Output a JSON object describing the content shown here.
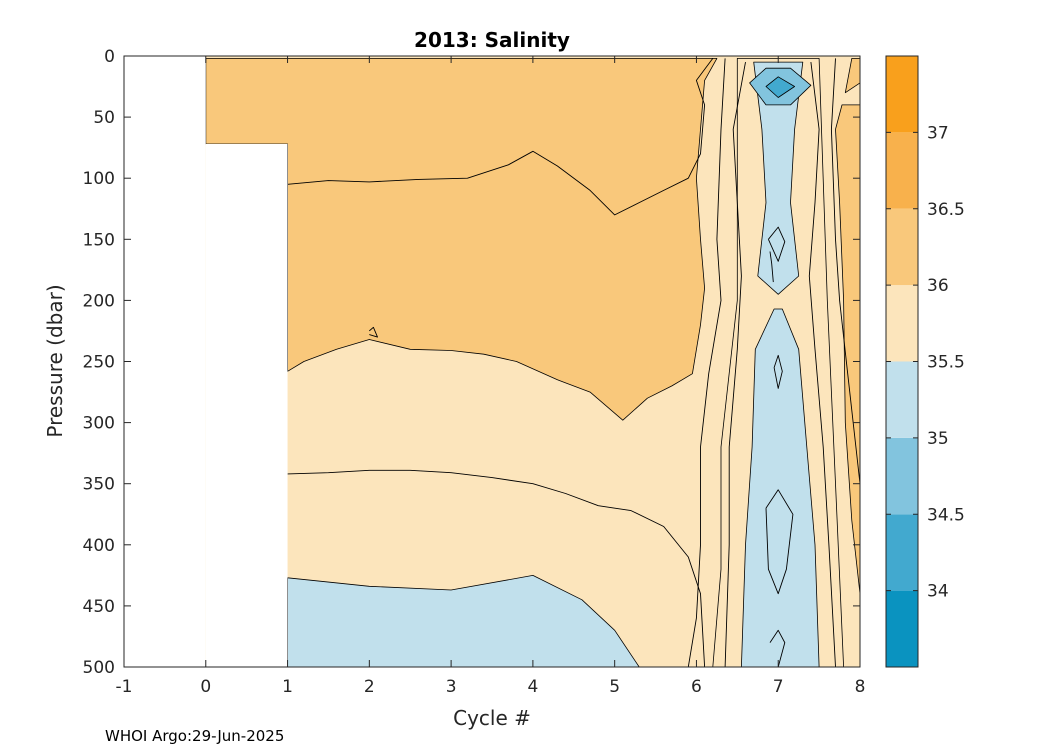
{
  "chart_data": {
    "type": "contour",
    "title": "2013:  Salinity",
    "xlabel": "Cycle #",
    "ylabel": "Pressure (dbar)",
    "xlim": [
      -1,
      8
    ],
    "ylim": [
      0,
      500
    ],
    "y_reversed": true,
    "x_ticks": [
      -1,
      0,
      1,
      2,
      3,
      4,
      5,
      6,
      7,
      8
    ],
    "y_ticks": [
      0,
      50,
      100,
      150,
      200,
      250,
      300,
      350,
      400,
      450,
      500
    ],
    "colorbar": {
      "range": [
        33.5,
        37.5
      ],
      "ticks": [
        34,
        34.5,
        35,
        35.5,
        36,
        36.5,
        37
      ],
      "bands": [
        {
          "from": 33.5,
          "to": 34.0,
          "color": "#0a93c0"
        },
        {
          "from": 34.0,
          "to": 34.5,
          "color": "#42a9cf"
        },
        {
          "from": 34.5,
          "to": 35.0,
          "color": "#82c4de"
        },
        {
          "from": 35.0,
          "to": 35.5,
          "color": "#c1e0ec"
        },
        {
          "from": 35.5,
          "to": 36.0,
          "color": "#fce5bc"
        },
        {
          "from": 36.0,
          "to": 36.5,
          "color": "#f9c87b"
        },
        {
          "from": 36.5,
          "to": 37.0,
          "color": "#f8b14c"
        },
        {
          "from": 37.0,
          "to": 37.5,
          "color": "#f9a01c"
        }
      ]
    },
    "no_data_regions": [
      {
        "x": [
          -1,
          0
        ],
        "y": [
          0,
          500
        ]
      },
      {
        "x": [
          0,
          1
        ],
        "y": [
          72,
          500
        ]
      }
    ],
    "regions": [
      {
        "level": 36.0,
        "color": "#f9c87b",
        "points": [
          [
            0,
            2
          ],
          [
            6.25,
            2
          ],
          [
            6.1,
            20
          ],
          [
            6.05,
            60
          ],
          [
            6.0,
            100
          ],
          [
            6.05,
            150
          ],
          [
            6.1,
            190
          ],
          [
            6.05,
            220
          ],
          [
            5.95,
            260
          ],
          [
            5.7,
            270
          ],
          [
            5.4,
            280
          ],
          [
            5.1,
            298
          ],
          [
            4.7,
            275
          ],
          [
            4.3,
            265
          ],
          [
            3.8,
            250
          ],
          [
            3.4,
            244
          ],
          [
            3.0,
            241
          ],
          [
            2.5,
            240
          ],
          [
            2.0,
            232
          ],
          [
            1.6,
            240
          ],
          [
            1.2,
            250
          ],
          [
            1.0,
            258
          ],
          [
            1.0,
            72
          ],
          [
            0,
            72
          ]
        ]
      },
      {
        "level": 35.0,
        "color": "#c1e0ec",
        "points": [
          [
            1,
            427
          ],
          [
            2,
            434
          ],
          [
            3,
            437
          ],
          [
            4,
            425
          ],
          [
            4.6,
            445
          ],
          [
            5.0,
            470
          ],
          [
            5.3,
            500
          ],
          [
            1,
            500
          ]
        ]
      },
      {
        "level": 35.5,
        "color": "#fce5bc",
        "points": [
          [
            6.5,
            2
          ],
          [
            6.5,
            200
          ],
          [
            6.3,
            320
          ],
          [
            6.3,
            420
          ],
          [
            6.2,
            500
          ],
          [
            7.8,
            500
          ],
          [
            7.7,
            350
          ],
          [
            7.6,
            200
          ],
          [
            7.5,
            2
          ]
        ]
      },
      {
        "level": 35.0,
        "color": "#c1e0ec",
        "points": [
          [
            6.7,
            5
          ],
          [
            6.8,
            60
          ],
          [
            6.85,
            120
          ],
          [
            6.75,
            180
          ],
          [
            7.0,
            195
          ],
          [
            7.25,
            180
          ],
          [
            7.15,
            120
          ],
          [
            7.2,
            60
          ],
          [
            7.3,
            5
          ]
        ]
      },
      {
        "level": 35.0,
        "color": "#c1e0ec",
        "points": [
          [
            6.95,
            207
          ],
          [
            6.72,
            240
          ],
          [
            6.68,
            320
          ],
          [
            6.6,
            400
          ],
          [
            6.55,
            500
          ],
          [
            7.5,
            500
          ],
          [
            7.45,
            400
          ],
          [
            7.35,
            320
          ],
          [
            7.25,
            240
          ],
          [
            7.05,
            207
          ]
        ]
      },
      {
        "level": 34.5,
        "color": "#82c4de",
        "points": [
          [
            6.65,
            22
          ],
          [
            6.85,
            10
          ],
          [
            7.15,
            10
          ],
          [
            7.4,
            24
          ],
          [
            7.15,
            40
          ],
          [
            6.85,
            40
          ]
        ]
      },
      {
        "level": 34.0,
        "color": "#42a9cf",
        "points": [
          [
            6.85,
            25
          ],
          [
            7.0,
            17
          ],
          [
            7.2,
            25
          ],
          [
            7.0,
            34
          ]
        ]
      },
      {
        "level": 36.0,
        "color": "#f9c87b",
        "points": [
          [
            7.7,
            60
          ],
          [
            7.78,
            40
          ],
          [
            8,
            40
          ],
          [
            8,
            440
          ],
          [
            7.9,
            380
          ],
          [
            7.82,
            300
          ],
          [
            7.8,
            200
          ],
          [
            7.75,
            120
          ]
        ]
      },
      {
        "level": 36.0,
        "color": "#f9c87b",
        "points": [
          [
            7.82,
            30
          ],
          [
            7.9,
            2
          ],
          [
            8,
            2
          ],
          [
            8,
            22
          ]
        ]
      }
    ],
    "contour_lines": [
      [
        [
          1,
          105
        ],
        [
          1.5,
          102
        ],
        [
          2,
          103
        ],
        [
          2.6,
          101
        ],
        [
          3.2,
          100
        ],
        [
          3.7,
          89
        ],
        [
          4.0,
          78
        ],
        [
          4.3,
          90
        ],
        [
          4.7,
          110
        ],
        [
          5.0,
          130
        ],
        [
          5.3,
          120
        ],
        [
          5.6,
          110
        ],
        [
          5.9,
          100
        ],
        [
          6.05,
          80
        ],
        [
          6.1,
          40
        ],
        [
          6.0,
          20
        ],
        [
          6.2,
          2
        ]
      ],
      [
        [
          1,
          342
        ],
        [
          1.5,
          341
        ],
        [
          2,
          339
        ],
        [
          2.5,
          339
        ],
        [
          3,
          341
        ],
        [
          3.5,
          345
        ],
        [
          4,
          350
        ],
        [
          4.4,
          358
        ],
        [
          4.8,
          368
        ],
        [
          5.2,
          372
        ],
        [
          5.6,
          385
        ],
        [
          5.9,
          410
        ],
        [
          6.05,
          440
        ],
        [
          6.1,
          500
        ]
      ],
      [
        [
          6.35,
          2
        ],
        [
          6.3,
          60
        ],
        [
          6.25,
          150
        ],
        [
          6.3,
          200
        ],
        [
          6.15,
          260
        ],
        [
          6.05,
          320
        ],
        [
          6.05,
          400
        ],
        [
          6.0,
          460
        ],
        [
          5.9,
          500
        ]
      ],
      [
        [
          7.7,
          2
        ],
        [
          7.65,
          60
        ],
        [
          7.7,
          150
        ],
        [
          7.75,
          200
        ],
        [
          7.85,
          260
        ],
        [
          7.95,
          320
        ],
        [
          8.0,
          350
        ]
      ],
      [
        [
          7.4,
          5
        ],
        [
          7.5,
          60
        ],
        [
          7.45,
          120
        ],
        [
          7.38,
          180
        ],
        [
          7.45,
          240
        ],
        [
          7.55,
          320
        ],
        [
          7.62,
          400
        ],
        [
          7.7,
          500
        ]
      ],
      [
        [
          6.6,
          5
        ],
        [
          6.45,
          60
        ],
        [
          6.5,
          120
        ],
        [
          6.55,
          180
        ],
        [
          6.5,
          240
        ],
        [
          6.4,
          320
        ],
        [
          6.4,
          400
        ],
        [
          6.35,
          500
        ]
      ],
      [
        [
          6.88,
          150
        ],
        [
          7.0,
          140
        ],
        [
          7.08,
          152
        ],
        [
          7.0,
          168
        ],
        [
          6.88,
          150
        ]
      ],
      [
        [
          6.95,
          255
        ],
        [
          7.0,
          245
        ],
        [
          7.05,
          258
        ],
        [
          7.0,
          272
        ],
        [
          6.95,
          255
        ]
      ],
      [
        [
          6.85,
          370
        ],
        [
          7.0,
          355
        ],
        [
          7.18,
          375
        ],
        [
          7.1,
          420
        ],
        [
          7.0,
          440
        ],
        [
          6.88,
          420
        ],
        [
          6.85,
          370
        ]
      ],
      [
        [
          6.9,
          480
        ],
        [
          7.0,
          470
        ],
        [
          7.08,
          480
        ],
        [
          7.0,
          500
        ]
      ],
      [
        [
          6.9,
          160
        ],
        [
          6.92,
          170
        ],
        [
          6.94,
          185
        ]
      ],
      [
        [
          2.0,
          225
        ],
        [
          2.05,
          222
        ],
        [
          2.1,
          230
        ],
        [
          2.0,
          228
        ]
      ]
    ]
  },
  "footer": {
    "text": "WHOI Argo:29-Jun-2025"
  }
}
